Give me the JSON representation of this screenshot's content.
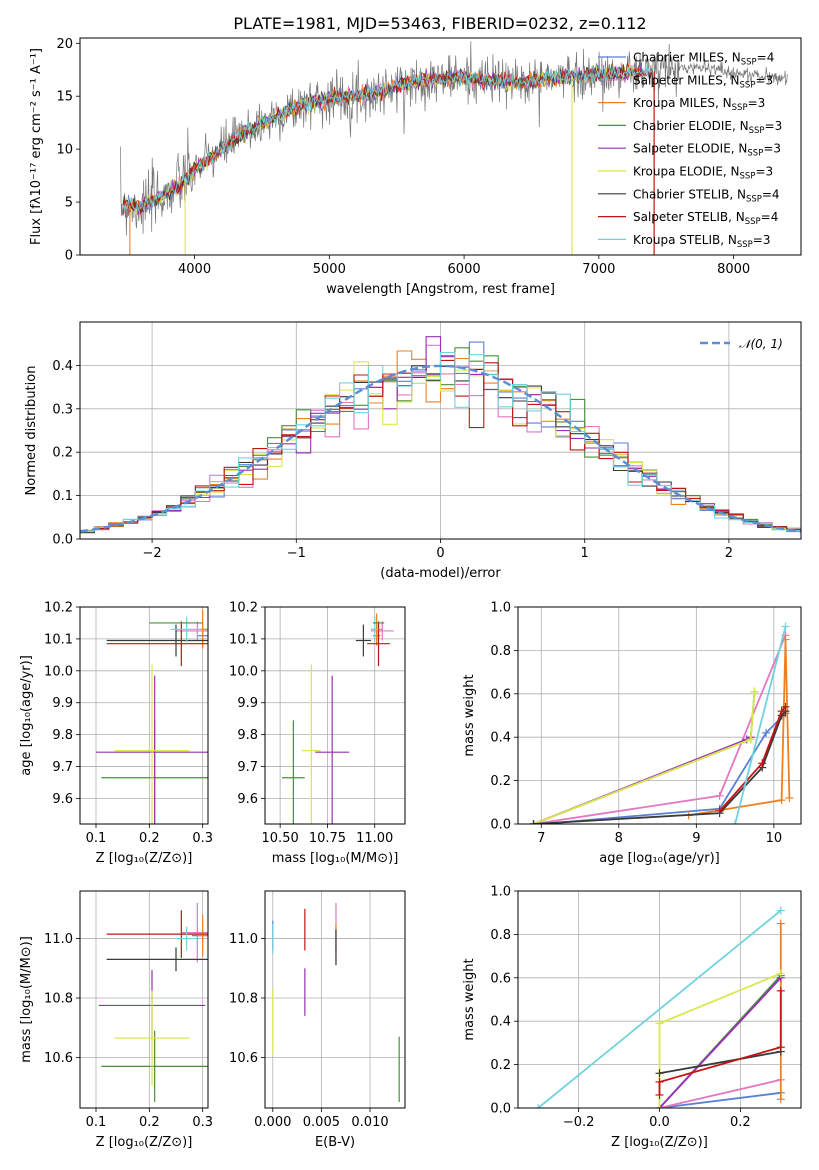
{
  "title": "PLATE=1981, MJD=53463, FIBERID=0232, z=0.112",
  "colors": {
    "Chabrier MILES": "#5b7fd6",
    "Salpeter MILES": "#e377c2",
    "Kroupa MILES": "#f07f22",
    "Chabrier ELODIE": "#4a8f3a",
    "Salpeter ELODIE": "#9b2fb8",
    "Kroupa ELODIE": "#d9e84a",
    "Chabrier STELIB": "#3a3a3a",
    "Salpeter STELIB": "#c21414",
    "Kroupa STELIB": "#6fd3df",
    "data": "#777777",
    "gauss": "#5b8ed6"
  },
  "chart_data": [
    {
      "type": "line",
      "panel": "spectrum",
      "xlabel": "wavelength [Angstrom, rest frame]",
      "ylabel": "Flux [fλ10⁻¹⁷ erg cm⁻² s⁻¹ A⁻¹]",
      "xlim": [
        3150,
        8500
      ],
      "ylim": [
        0,
        20.5
      ],
      "xticks": [
        "4000",
        "5000",
        "6000",
        "7000",
        "8000"
      ],
      "yticks": [
        "0",
        "5",
        "10",
        "15",
        "20"
      ],
      "legend": "right",
      "legend_entries": [
        {
          "label": "Chabrier MILES, N",
          "sub": "SSP",
          "suffix": "=4"
        },
        {
          "label": "Salpeter MILES, N",
          "sub": "SSP",
          "suffix": "=3"
        },
        {
          "label": "Kroupa MILES, N",
          "sub": "SSP",
          "suffix": "=3"
        },
        {
          "label": "Chabrier ELODIE, N",
          "sub": "SSP",
          "suffix": "=3"
        },
        {
          "label": "Salpeter ELODIE, N",
          "sub": "SSP",
          "suffix": "=3"
        },
        {
          "label": "Kroupa ELODIE, N",
          "sub": "SSP",
          "suffix": "=3"
        },
        {
          "label": "Chabrier STELIB, N",
          "sub": "SSP",
          "suffix": "=4"
        },
        {
          "label": "Salpeter STELIB, N",
          "sub": "SSP",
          "suffix": "=4"
        },
        {
          "label": "Kroupa STELIB, N",
          "sub": "SSP",
          "suffix": "=3"
        }
      ],
      "continuum_x": [
        3450,
        3600,
        3700,
        3850,
        4000,
        4200,
        4400,
        4600,
        4800,
        5000,
        5200,
        5400,
        5600,
        5800,
        6000,
        6200,
        6400,
        6600,
        6800,
        7000,
        7200,
        7400,
        7600,
        7800,
        8000,
        8200,
        8400
      ],
      "continuum_y": [
        4.8,
        4.5,
        5.2,
        6.2,
        8.0,
        10.0,
        11.8,
        13.0,
        14.2,
        14.8,
        15.0,
        15.5,
        16.3,
        16.6,
        16.8,
        16.5,
        16.3,
        16.6,
        16.9,
        17.0,
        17.2,
        17.3,
        17.6,
        17.8,
        17.2,
        16.9,
        16.7
      ]
    },
    {
      "type": "bar",
      "panel": "residual histogram",
      "xlabel": "(data-model)/error",
      "ylabel": "Normed distribution",
      "xlim": [
        -2.5,
        2.5
      ],
      "ylim": [
        0,
        0.5
      ],
      "xticks": [
        "−2",
        "−1",
        "0",
        "1",
        "2"
      ],
      "yticks": [
        "0.0",
        "0.1",
        "0.2",
        "0.3",
        "0.4"
      ],
      "legend_label": "𝒩(0, 1)",
      "bin_width": 0.1,
      "mean": 0,
      "sigma": 1
    },
    {
      "type": "scatter",
      "panel": "age vs Z",
      "xlabel": "Z [log₁₀(Z/Z⊙)]",
      "ylabel": "age  [log₁₀(age/yr)]",
      "xlim": [
        0.07,
        0.31
      ],
      "ylim": [
        9.52,
        10.2
      ],
      "xticks": [
        "0.1",
        "0.2",
        "0.3"
      ],
      "yticks": [
        "9.6",
        "9.7",
        "9.8",
        "9.9",
        "10.0",
        "10.1",
        "10.2"
      ],
      "points": [
        {
          "m": "Chabrier MILES",
          "x": 0.3,
          "y": 10.11,
          "xe": 0.01,
          "ye": 0.03
        },
        {
          "m": "Salpeter MILES",
          "x": 0.29,
          "y": 10.125,
          "xe": 0.04,
          "ye": 0.03
        },
        {
          "m": "Kroupa MILES",
          "x": 0.3,
          "y": 10.13,
          "xe": 0.01,
          "ye": 0.06
        },
        {
          "m": "Chabrier ELODIE",
          "x": 0.21,
          "y": 9.665,
          "xe": 0.1,
          "ye": 0.18
        },
        {
          "m": "Salpeter ELODIE",
          "x": 0.21,
          "y": 9.745,
          "xe": 0.11,
          "ye": 0.24
        },
        {
          "m": "Kroupa ELODIE",
          "x": 0.205,
          "y": 9.75,
          "xe": 0.07,
          "ye": 0.27
        },
        {
          "m": "Chabrier STELIB",
          "x": 0.25,
          "y": 10.095,
          "xe": 0.13,
          "ye": 0.05
        },
        {
          "m": "Salpeter STELIB",
          "x": 0.26,
          "y": 10.085,
          "xe": 0.14,
          "ye": 0.07
        },
        {
          "m": "Kroupa STELIB",
          "x": 0.27,
          "y": 10.13,
          "xe": 0.03,
          "ye": 0.04
        },
        {
          "m": "Chabrier ELODIE",
          "x": 0.25,
          "y": 10.15,
          "xe": 0.05,
          "ye": 0.0
        }
      ]
    },
    {
      "type": "scatter",
      "panel": "age vs mass",
      "xlabel": "mass [log₁₀(M/M⊙)]",
      "ylabel": "",
      "xlim": [
        10.42,
        11.16
      ],
      "ylim": [
        9.52,
        10.2
      ],
      "xticks": [
        "10.50",
        "10.75",
        "11.00"
      ],
      "yticks": [
        "9.6",
        "9.7",
        "9.8",
        "9.9",
        "10.0",
        "10.1",
        "10.2"
      ],
      "points": [
        {
          "m": "Chabrier MILES",
          "x": 11.01,
          "y": 10.11,
          "xe": 0.02,
          "ye": 0.03
        },
        {
          "m": "Salpeter MILES",
          "x": 11.04,
          "y": 10.125,
          "xe": 0.06,
          "ye": 0.03
        },
        {
          "m": "Kroupa MILES",
          "x": 11.01,
          "y": 10.13,
          "xe": 0.03,
          "ye": 0.05
        },
        {
          "m": "Chabrier ELODIE",
          "x": 10.57,
          "y": 9.665,
          "xe": 0.06,
          "ye": 0.18
        },
        {
          "m": "Salpeter ELODIE",
          "x": 10.775,
          "y": 9.745,
          "xe": 0.09,
          "ye": 0.24
        },
        {
          "m": "Kroupa ELODIE",
          "x": 10.665,
          "y": 9.75,
          "xe": 0.05,
          "ye": 0.27
        },
        {
          "m": "Chabrier STELIB",
          "x": 10.94,
          "y": 10.095,
          "xe": 0.04,
          "ye": 0.05
        },
        {
          "m": "Salpeter STELIB",
          "x": 11.02,
          "y": 10.085,
          "xe": 0.06,
          "ye": 0.07
        },
        {
          "m": "Kroupa STELIB",
          "x": 11.0,
          "y": 10.13,
          "xe": 0.02,
          "ye": 0.04
        },
        {
          "m": "Chabrier ELODIE",
          "x": 11.02,
          "y": 10.15,
          "xe": 0.03,
          "ye": 0.0
        }
      ]
    },
    {
      "type": "line",
      "panel": "mass weight vs age",
      "xlabel": "age  [log₁₀(age/yr)]",
      "ylabel": "mass weight",
      "xlim": [
        6.7,
        10.35
      ],
      "ylim": [
        0,
        1.0
      ],
      "xticks": [
        "7",
        "8",
        "9",
        "10"
      ],
      "yticks": [
        "0.0",
        "0.2",
        "0.4",
        "0.6",
        "0.8",
        "1.0"
      ],
      "series": [
        {
          "m": "Chabrier MILES",
          "x": [
            7.0,
            9.3,
            9.9,
            10.15
          ],
          "y": [
            0.0,
            0.07,
            0.42,
            0.51
          ]
        },
        {
          "m": "Salpeter MILES",
          "x": [
            6.9,
            9.3,
            10.15
          ],
          "y": [
            0.0,
            0.13,
            0.87
          ]
        },
        {
          "m": "Kroupa MILES",
          "x": [
            8.9,
            10.1,
            10.15,
            10.2
          ],
          "y": [
            0.04,
            0.11,
            0.85,
            0.12
          ]
        },
        {
          "m": "Chabrier ELODIE",
          "x": [
            6.9,
            9.7,
            9.75
          ],
          "y": [
            0.0,
            0.39,
            0.61
          ]
        },
        {
          "m": "Salpeter ELODIE",
          "x": [
            6.9,
            9.65,
            9.7
          ],
          "y": [
            0.0,
            0.39,
            0.4
          ]
        },
        {
          "m": "Kroupa ELODIE",
          "x": [
            6.9,
            9.7,
            9.75
          ],
          "y": [
            0.0,
            0.39,
            0.61
          ]
        },
        {
          "m": "Chabrier STELIB",
          "x": [
            6.9,
            9.3,
            9.85,
            10.1,
            10.15
          ],
          "y": [
            0.0,
            0.05,
            0.26,
            0.5,
            0.52
          ]
        },
        {
          "m": "Salpeter STELIB",
          "x": [
            9.3,
            9.85,
            10.1,
            10.15
          ],
          "y": [
            0.06,
            0.28,
            0.52,
            0.54
          ]
        },
        {
          "m": "Kroupa STELIB",
          "x": [
            9.5,
            10.15
          ],
          "y": [
            0.0,
            0.91
          ]
        }
      ]
    },
    {
      "type": "scatter",
      "panel": "mass vs Z",
      "xlabel": "Z [log₁₀(Z/Z⊙)]",
      "ylabel": "mass [log₁₀(M/M⊙)]",
      "xlim": [
        0.07,
        0.31
      ],
      "ylim": [
        10.43,
        11.16
      ],
      "xticks": [
        "0.1",
        "0.2",
        "0.3"
      ],
      "yticks": [
        "10.6",
        "10.8",
        "11.0"
      ],
      "points": [
        {
          "m": "Chabrier MILES",
          "x": 0.3,
          "y": 11.01,
          "xe": 0.02,
          "ye": 0.02
        },
        {
          "m": "Salpeter MILES",
          "x": 0.29,
          "y": 11.02,
          "xe": 0.03,
          "ye": 0.1
        },
        {
          "m": "Kroupa MILES",
          "x": 0.3,
          "y": 11.01,
          "xe": 0.01,
          "ye": 0.07
        },
        {
          "m": "Chabrier ELODIE",
          "x": 0.21,
          "y": 10.57,
          "xe": 0.1,
          "ye": 0.12
        },
        {
          "m": "Salpeter ELODIE",
          "x": 0.205,
          "y": 10.775,
          "xe": 0.1,
          "ye": 0.12
        },
        {
          "m": "Kroupa ELODIE",
          "x": 0.205,
          "y": 10.665,
          "xe": 0.07,
          "ye": 0.16
        },
        {
          "m": "Chabrier STELIB",
          "x": 0.25,
          "y": 10.93,
          "xe": 0.13,
          "ye": 0.04
        },
        {
          "m": "Salpeter STELIB",
          "x": 0.26,
          "y": 11.015,
          "xe": 0.14,
          "ye": 0.08
        },
        {
          "m": "Kroupa STELIB",
          "x": 0.27,
          "y": 11.0,
          "xe": 0.02,
          "ye": 0.04
        }
      ]
    },
    {
      "type": "scatter",
      "panel": "mass vs E(B-V)",
      "xlabel": "E(B-V)",
      "ylabel": "",
      "xlim": [
        -0.0008,
        0.0136
      ],
      "ylim": [
        10.43,
        11.16
      ],
      "xticks": [
        "0.000",
        "0.005",
        "0.010"
      ],
      "yticks": [
        "10.6",
        "10.8",
        "11.0"
      ],
      "points": [
        {
          "m": "Chabrier MILES",
          "x": 0.0,
          "y": 11.01,
          "xe": 0.0,
          "ye": 0.05
        },
        {
          "m": "Salpeter MILES",
          "x": 0.0065,
          "y": 11.02,
          "xe": 0.0,
          "ye": 0.1
        },
        {
          "m": "Kroupa MILES",
          "x": 0.0065,
          "y": 11.0,
          "xe": 0.0,
          "ye": 0.05
        },
        {
          "m": "Chabrier ELODIE",
          "x": 0.013,
          "y": 10.56,
          "xe": 0.0,
          "ye": 0.11
        },
        {
          "m": "Salpeter ELODIE",
          "x": 0.0033,
          "y": 10.82,
          "xe": 0.0,
          "ye": 0.08
        },
        {
          "m": "Kroupa ELODIE",
          "x": 0.0,
          "y": 10.72,
          "xe": 0.0,
          "ye": 0.11
        },
        {
          "m": "Chabrier STELIB",
          "x": 0.0065,
          "y": 10.97,
          "xe": 0.0,
          "ye": 0.06
        },
        {
          "m": "Salpeter STELIB",
          "x": 0.0033,
          "y": 11.03,
          "xe": 0.0,
          "ye": 0.07
        },
        {
          "m": "Kroupa STELIB",
          "x": 0.0,
          "y": 11.0,
          "xe": 0.0,
          "ye": 0.05
        }
      ]
    },
    {
      "type": "line",
      "panel": "mass weight vs Z",
      "xlabel": "Z [log₁₀(Z/Z⊙)]",
      "ylabel": "mass weight",
      "xlim": [
        -0.35,
        0.35
      ],
      "ylim": [
        0,
        1.0
      ],
      "xticks": [
        "−0.2",
        "0.0",
        "0.2"
      ],
      "yticks": [
        "0.0",
        "0.2",
        "0.4",
        "0.6",
        "0.8",
        "1.0"
      ],
      "series": [
        {
          "m": "Chabrier MILES",
          "x": [
            0.0,
            0.3
          ],
          "y": [
            0.0,
            0.07
          ]
        },
        {
          "m": "Salpeter MILES",
          "x": [
            0.0,
            0.3
          ],
          "y": [
            0.0,
            0.13
          ]
        },
        {
          "m": "Kroupa MILES",
          "x": [
            0.3,
            0.3
          ],
          "y": [
            0.04,
            0.85
          ]
        },
        {
          "m": "Chabrier ELODIE",
          "x": [
            0.0,
            0.3
          ],
          "y": [
            0.0,
            0.61
          ]
        },
        {
          "m": "Salpeter ELODIE",
          "x": [
            0.0,
            0.3
          ],
          "y": [
            0.0,
            0.6
          ]
        },
        {
          "m": "Kroupa ELODIE",
          "x": [
            0.0,
            0.0,
            0.3
          ],
          "y": [
            0.0,
            0.39,
            0.62
          ]
        },
        {
          "m": "Chabrier STELIB",
          "x": [
            0.0,
            0.3
          ],
          "y": [
            0.16,
            0.26
          ]
        },
        {
          "m": "Salpeter STELIB",
          "x": [
            0.0,
            0.0,
            0.3,
            0.3
          ],
          "y": [
            0.06,
            0.12,
            0.28,
            0.54
          ]
        },
        {
          "m": "Kroupa STELIB",
          "x": [
            -0.3,
            0.3
          ],
          "y": [
            0.0,
            0.91
          ]
        }
      ]
    }
  ]
}
